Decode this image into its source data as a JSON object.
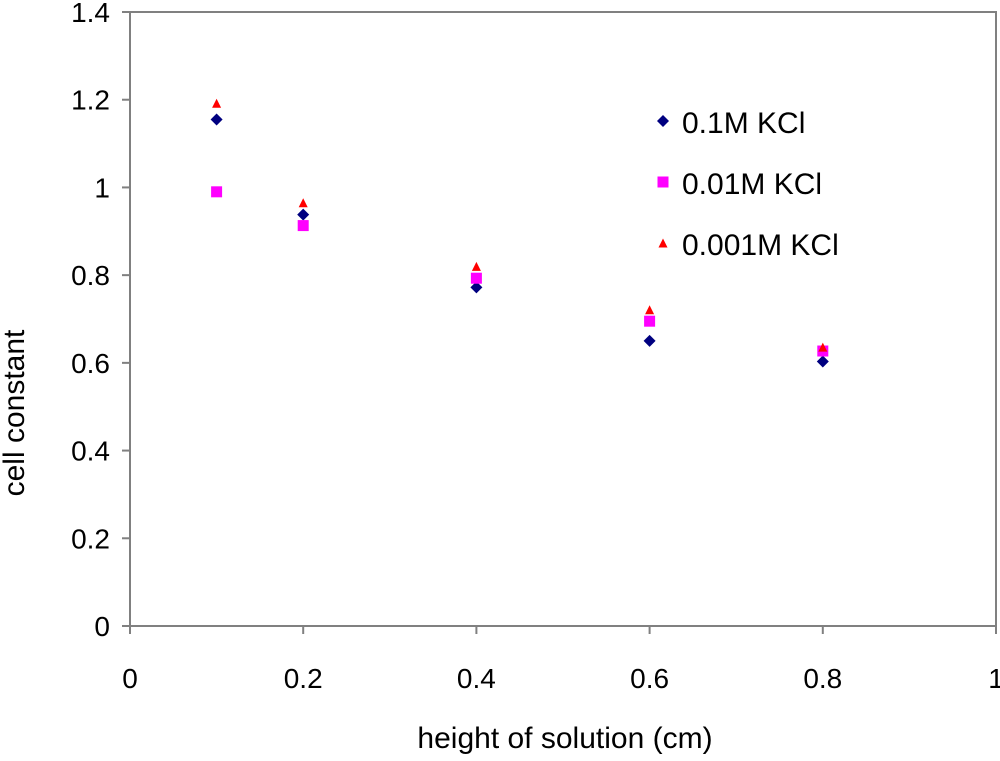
{
  "chart_data": {
    "type": "scatter",
    "title": "",
    "xlabel": "height of solution (cm)",
    "ylabel": "cell constant",
    "xlim": [
      0,
      1
    ],
    "ylim": [
      0,
      1.4
    ],
    "x_ticks": [
      {
        "value": 0,
        "label": "0"
      },
      {
        "value": 0.2,
        "label": "0.2"
      },
      {
        "value": 0.4,
        "label": "0.4"
      },
      {
        "value": 0.6,
        "label": "0.6"
      },
      {
        "value": 0.8,
        "label": "0.8"
      },
      {
        "value": 1,
        "label": "1"
      }
    ],
    "y_ticks": [
      {
        "value": 0,
        "label": "0"
      },
      {
        "value": 0.2,
        "label": "0.2"
      },
      {
        "value": 0.4,
        "label": "0.4"
      },
      {
        "value": 0.6,
        "label": "0.6"
      },
      {
        "value": 0.8,
        "label": "0.8"
      },
      {
        "value": 1,
        "label": "1"
      },
      {
        "value": 1.2,
        "label": "1.2"
      },
      {
        "value": 1.4,
        "label": "1.4"
      }
    ],
    "grid": false,
    "legend_position": "top-right",
    "series": [
      {
        "name": "0.1M KCl",
        "marker": "diamond",
        "color": "#000080",
        "points": [
          {
            "x": 0.1,
            "y": 1.155
          },
          {
            "x": 0.2,
            "y": 0.938
          },
          {
            "x": 0.4,
            "y": 0.772
          },
          {
            "x": 0.6,
            "y": 0.65
          },
          {
            "x": 0.8,
            "y": 0.603
          }
        ]
      },
      {
        "name": "0.01M KCl",
        "marker": "square",
        "color": "#FF00FF",
        "points": [
          {
            "x": 0.1,
            "y": 0.99
          },
          {
            "x": 0.2,
            "y": 0.913
          },
          {
            "x": 0.4,
            "y": 0.793
          },
          {
            "x": 0.6,
            "y": 0.695
          },
          {
            "x": 0.8,
            "y": 0.627
          }
        ]
      },
      {
        "name": "0.001M KCl",
        "marker": "triangle",
        "color": "#FF0000",
        "points": [
          {
            "x": 0.1,
            "y": 1.192
          },
          {
            "x": 0.2,
            "y": 0.965
          },
          {
            "x": 0.4,
            "y": 0.82
          },
          {
            "x": 0.6,
            "y": 0.721
          },
          {
            "x": 0.8,
            "y": 0.636
          }
        ]
      }
    ]
  }
}
